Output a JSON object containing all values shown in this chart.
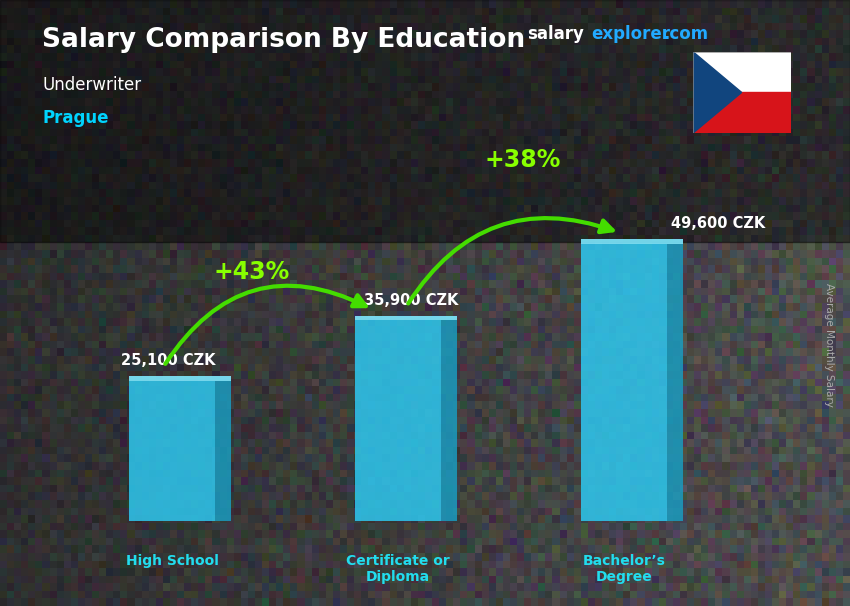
{
  "title_main": "Salary Comparison By Education",
  "subtitle1": "Underwriter",
  "subtitle2": "Prague",
  "ylabel": "Average Monthly Salary",
  "categories": [
    "High School",
    "Certificate or\nDiploma",
    "Bachelor’s\nDegree"
  ],
  "values": [
    25100,
    35900,
    49600
  ],
  "value_labels": [
    "25,100 CZK",
    "35,900 CZK",
    "49,600 CZK"
  ],
  "pct_labels": [
    "+43%",
    "+38%"
  ],
  "bar_color_front": "#2ec8f0",
  "bar_color_right": "#1a9bbf",
  "bar_color_top": "#7de8ff",
  "bg_dark": "#1a1a22",
  "bg_mid": "#3a3a4a",
  "title_color": "#ffffff",
  "subtitle1_color": "#ffffff",
  "subtitle2_color": "#00d4ff",
  "value_label_color": "#ffffff",
  "pct_color": "#88ff00",
  "arrow_color": "#44dd00",
  "xlabel_color": "#22ddee",
  "website_salary_color": "#ffffff",
  "website_explorer_color": "#22aaff",
  "website_com_color": "#22aaff",
  "ylabel_color": "#aaaaaa",
  "bar_width": 0.38,
  "bar_depth": 0.07,
  "ylim": [
    0,
    65000
  ],
  "flag_white": "#ffffff",
  "flag_red": "#d7141a",
  "flag_blue": "#11457e"
}
